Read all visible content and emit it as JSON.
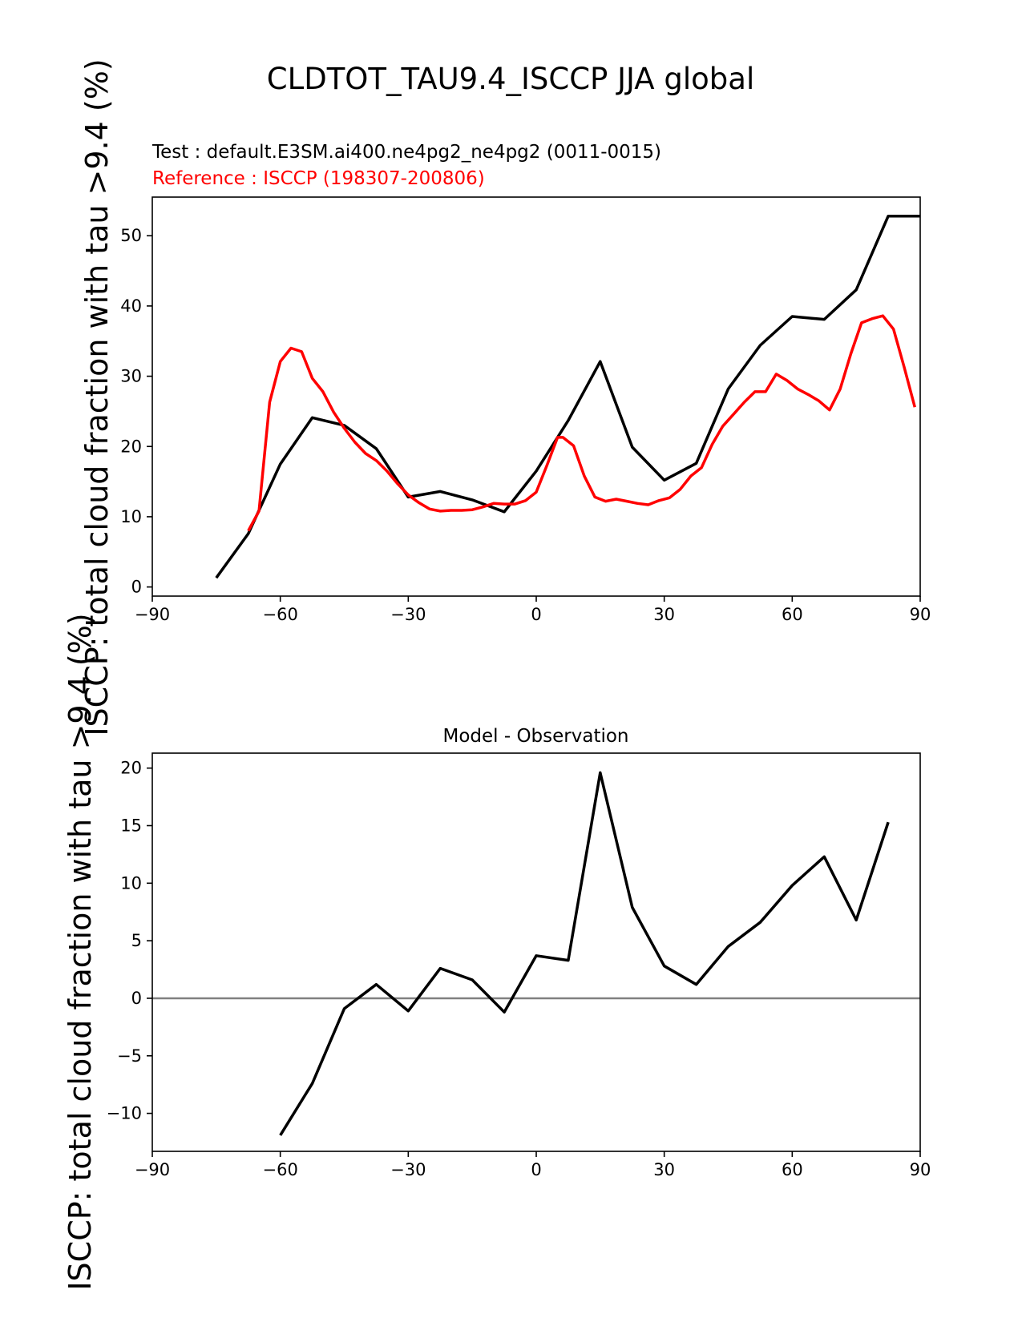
{
  "figure": {
    "title": "CLDTOT_TAU9.4_ISCCP JJA global",
    "test_label": "Test : default.E3SM.ai400.ne4pg2_ne4pg2 (0011-0015)",
    "reference_label": "Reference : ISCCP (198307-200806)",
    "reference_color": "#ff0000",
    "test_color": "#000000"
  },
  "chart_data": [
    {
      "type": "line",
      "title": "",
      "xlabel": "",
      "ylabel": "ISCCP: total cloud fraction with tau >9.4 (%)",
      "xlim": [
        -90,
        90
      ],
      "ylim": [
        -1.3,
        55.5
      ],
      "xticks": [
        -90,
        -60,
        -30,
        0,
        30,
        60,
        90
      ],
      "xtick_labels": [
        "−90",
        "−60",
        "−30",
        "0",
        "30",
        "60",
        "90"
      ],
      "yticks": [
        0,
        10,
        20,
        30,
        40,
        50
      ],
      "ytick_labels": [
        "0",
        "10",
        "20",
        "30",
        "40",
        "50"
      ],
      "grid": false,
      "series": [
        {
          "name": "Test",
          "color": "#000000",
          "x": [
            -75,
            -67.5,
            -60,
            -52.5,
            -45,
            -37.5,
            -30,
            -22.5,
            -15,
            -7.5,
            0,
            7.5,
            15,
            22.5,
            30,
            37.5,
            45,
            52.5,
            60,
            67.5,
            75,
            82.5,
            90
          ],
          "y": [
            1.3,
            7.6,
            17.5,
            24.1,
            23.0,
            19.7,
            12.8,
            13.6,
            12.4,
            10.7,
            16.5,
            23.7,
            32.1,
            19.9,
            15.2,
            17.6,
            28.2,
            34.4,
            38.5,
            38.1,
            42.3,
            52.8,
            52.8
          ]
        },
        {
          "name": "Reference",
          "color": "#ff0000",
          "x": [
            -67.5,
            -65,
            -62.5,
            -60,
            -57.5,
            -55,
            -52.5,
            -50,
            -47.5,
            -45,
            -42.5,
            -40,
            -37.5,
            -35,
            -32.5,
            -30,
            -27.5,
            -25,
            -22.5,
            -20,
            -17.5,
            -15,
            -12.5,
            -10,
            -7.5,
            -5,
            -2.5,
            0,
            2.5,
            5,
            6.25,
            8.75,
            11.25,
            13.75,
            16.25,
            18.75,
            21.25,
            23.75,
            26.25,
            28.75,
            31.25,
            33.75,
            36.25,
            38.75,
            41.25,
            43.75,
            46.25,
            48.75,
            51.25,
            53.75,
            56.25,
            58.75,
            61.25,
            63.75,
            66.25,
            68.75,
            71.25,
            73.75,
            76.25,
            78.75,
            81.25,
            83.75,
            86.25,
            88.75
          ],
          "y": [
            8.0,
            10.8,
            26.3,
            32.1,
            34.0,
            33.5,
            29.7,
            27.8,
            24.9,
            22.6,
            20.6,
            19.0,
            18.0,
            16.5,
            14.7,
            13.1,
            12.0,
            11.1,
            10.8,
            10.9,
            10.9,
            11.0,
            11.4,
            11.9,
            11.8,
            11.8,
            12.3,
            13.5,
            17.3,
            21.3,
            21.3,
            20.1,
            15.8,
            12.8,
            12.2,
            12.5,
            12.2,
            11.9,
            11.7,
            12.3,
            12.7,
            13.9,
            15.8,
            17.0,
            20.3,
            22.9,
            24.6,
            26.3,
            27.8,
            27.8,
            30.3,
            29.4,
            28.2,
            27.4,
            26.5,
            25.2,
            28.2,
            33.2,
            37.6,
            38.2,
            38.6,
            36.7,
            31.3,
            25.6
          ]
        }
      ]
    },
    {
      "type": "line",
      "title": "Model - Observation",
      "xlabel": "",
      "ylabel": "ISCCP: total cloud fraction with tau >9.4 (%)",
      "xlim": [
        -90,
        90
      ],
      "ylim": [
        -13.3,
        21.3
      ],
      "xticks": [
        -90,
        -60,
        -30,
        0,
        30,
        60,
        90
      ],
      "xtick_labels": [
        "−90",
        "−60",
        "−30",
        "0",
        "30",
        "60",
        "90"
      ],
      "yticks": [
        -10,
        -5,
        0,
        5,
        10,
        15,
        20
      ],
      "ytick_labels": [
        "−10",
        "−5",
        "0",
        "5",
        "10",
        "15",
        "20"
      ],
      "zero_line_color": "#808080",
      "grid": false,
      "series": [
        {
          "name": "Model - Observation",
          "color": "#000000",
          "x": [
            -60,
            -52.5,
            -45,
            -37.5,
            -30,
            -22.5,
            -15,
            -7.5,
            0,
            7.5,
            15,
            22.5,
            30,
            37.5,
            45,
            52.5,
            60,
            67.5,
            75,
            82.5
          ],
          "y": [
            -11.9,
            -7.4,
            -0.9,
            1.2,
            -1.1,
            2.6,
            1.6,
            -1.2,
            3.7,
            3.3,
            19.6,
            7.9,
            2.8,
            1.2,
            4.5,
            6.6,
            9.8,
            12.3,
            6.8,
            15.3
          ]
        }
      ]
    }
  ]
}
